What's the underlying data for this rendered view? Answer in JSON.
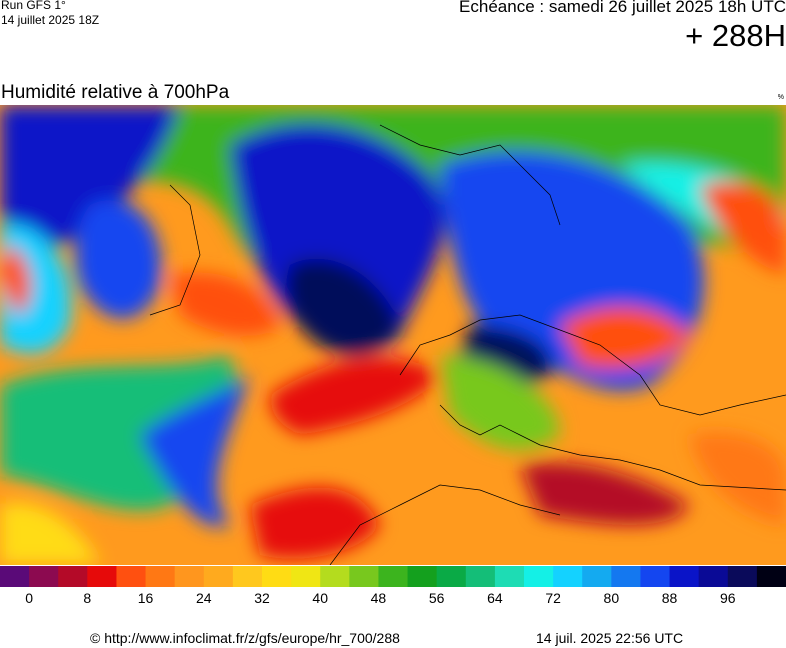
{
  "header": {
    "run": "Run GFS 1°",
    "run_date": "14 juillet 2025 18Z",
    "valid": "Echéance : samedi 26 juillet 2025 18h UTC",
    "lead": "+ 288H"
  },
  "map": {
    "title": "Humidité relative à 700hPa",
    "unit": "%"
  },
  "colorbar": {
    "lim": [
      -4,
      104
    ],
    "ticks": [
      0,
      8,
      16,
      24,
      32,
      40,
      48,
      56,
      64,
      72,
      80,
      88,
      96
    ],
    "colors": [
      "#5a0a78",
      "#8c0a50",
      "#b40a28",
      "#e60a0a",
      "#ff5010",
      "#ff7814",
      "#ff961e",
      "#ffaa1e",
      "#ffc81e",
      "#ffdc14",
      "#f0e614",
      "#b4dc1e",
      "#78c81e",
      "#3cb41e",
      "#14a01e",
      "#0aaa46",
      "#14be78",
      "#1edcb4",
      "#14f0e6",
      "#14d2ff",
      "#14aaf0",
      "#1478f0",
      "#1446f0",
      "#0a14c8",
      "#0a0a96",
      "#0a0a5a",
      "#000014"
    ]
  },
  "footer": {
    "source": "© http://www.infoclimat.fr/z/gfs/europe/hr_700/288",
    "generated": "14 juil. 2025 22:56 UTC"
  }
}
